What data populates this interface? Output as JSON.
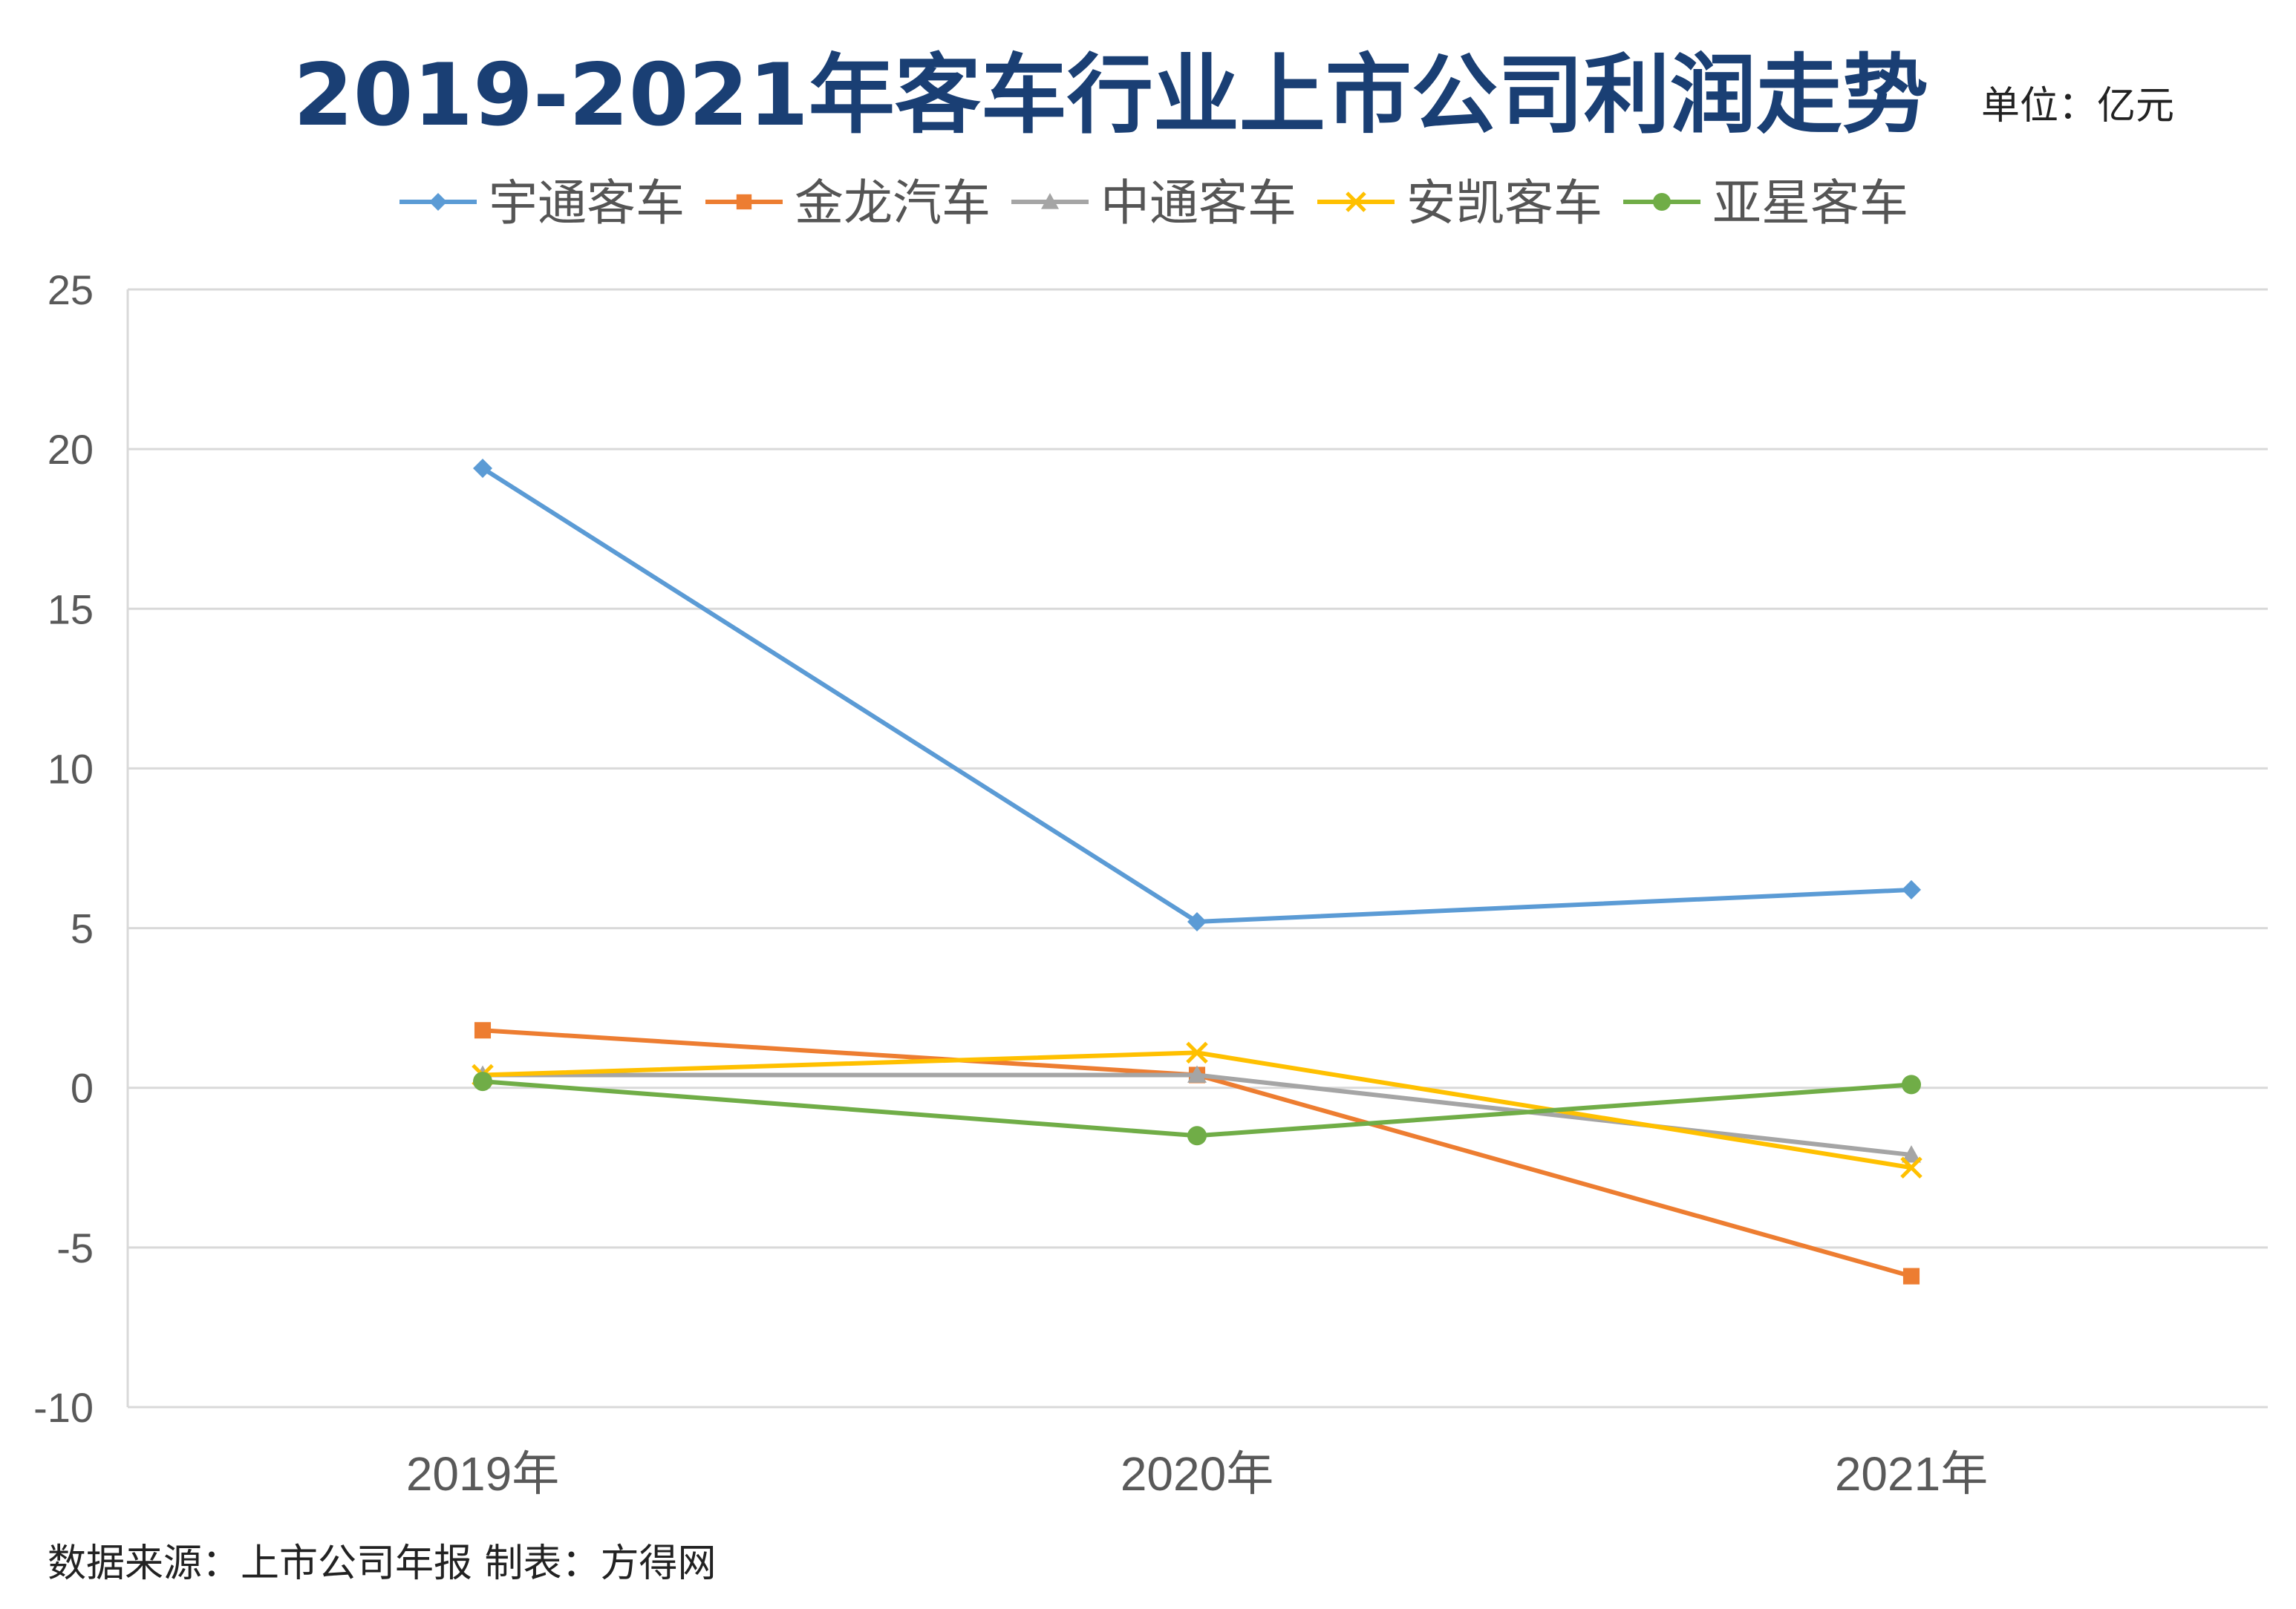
{
  "chart_data": {
    "type": "line",
    "title": "2019-2021年客车行业上市公司利润走势",
    "unit_label": "单位：亿元",
    "source_note": "数据来源：上市公司年报    制表：方得网",
    "categories": [
      "2019年",
      "2020年",
      "2021年"
    ],
    "ylim": [
      -10,
      25
    ],
    "yticks": [
      25,
      20,
      15,
      10,
      5,
      0,
      -5,
      -10
    ],
    "grid": true,
    "legend_position": "top",
    "series": [
      {
        "name": "宇通客车",
        "values": [
          19.4,
          5.2,
          6.2
        ],
        "color": "#5b9bd5",
        "marker": "diamond"
      },
      {
        "name": "金龙汽车",
        "values": [
          1.8,
          0.4,
          -5.9
        ],
        "color": "#ed7d31",
        "marker": "square"
      },
      {
        "name": "中通客车",
        "values": [
          0.4,
          0.4,
          -2.1
        ],
        "color": "#a5a5a5",
        "marker": "triangle"
      },
      {
        "name": "安凯客车",
        "values": [
          0.4,
          1.1,
          -2.5
        ],
        "color": "#ffc000",
        "marker": "x"
      },
      {
        "name": "亚星客车",
        "values": [
          0.2,
          -1.5,
          0.1
        ],
        "color": "#70ad47",
        "marker": "circle"
      }
    ]
  }
}
